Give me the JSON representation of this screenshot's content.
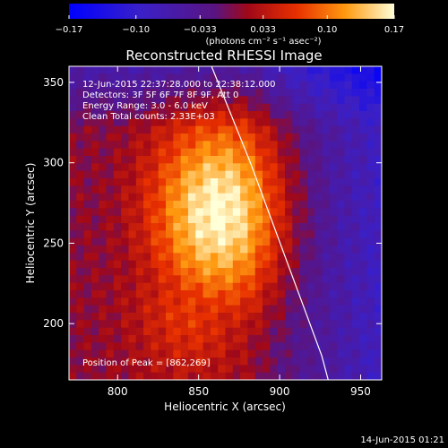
{
  "colorbar": {
    "tick_labels": [
      "−0.17",
      "−0.10",
      "−0.033",
      "0.033",
      "0.10",
      "0.17"
    ],
    "tick_values": [
      -0.17,
      -0.1,
      -0.033,
      0.033,
      0.1,
      0.17
    ],
    "unit_label": "(photons cm⁻² s⁻¹ asec⁻²)",
    "range": [
      -0.17,
      0.17
    ]
  },
  "chart_data": {
    "type": "heatmap",
    "title": "Reconstructed RHESSI Image",
    "xlabel": "Heliocentric X (arcsec)",
    "ylabel": "Heliocentric Y (arcsec)",
    "xlim": [
      770,
      963
    ],
    "ylim": [
      165,
      360
    ],
    "xticks": [
      800,
      850,
      900,
      950
    ],
    "yticks": [
      200,
      250,
      300,
      350
    ],
    "xtick_labels": [
      "800",
      "850",
      "900",
      "950"
    ],
    "ytick_labels": [
      "200",
      "250",
      "300",
      "350"
    ],
    "peak_position": [
      862,
      269
    ],
    "annotations": {
      "time_range": "12-Jun-2015 22:37:28.000 to 22:38:12.000",
      "detectors": "Detectors: 3F 5F 6F 7F 8F 9F, Att 0",
      "energy": "Energy Range: 3.0 - 6.0 keV",
      "clean": "Clean     Total counts: 2.33E+03",
      "peak": "Position of Peak = [862,269]"
    },
    "limb_curve_points": [
      [
        858,
        360
      ],
      [
        870,
        330
      ],
      [
        882,
        300
      ],
      [
        893,
        270
      ],
      [
        904,
        240
      ],
      [
        915,
        210
      ],
      [
        926,
        180
      ],
      [
        930,
        165
      ]
    ]
  },
  "footer": {
    "timestamp": "14-Jun-2015 01:21"
  }
}
